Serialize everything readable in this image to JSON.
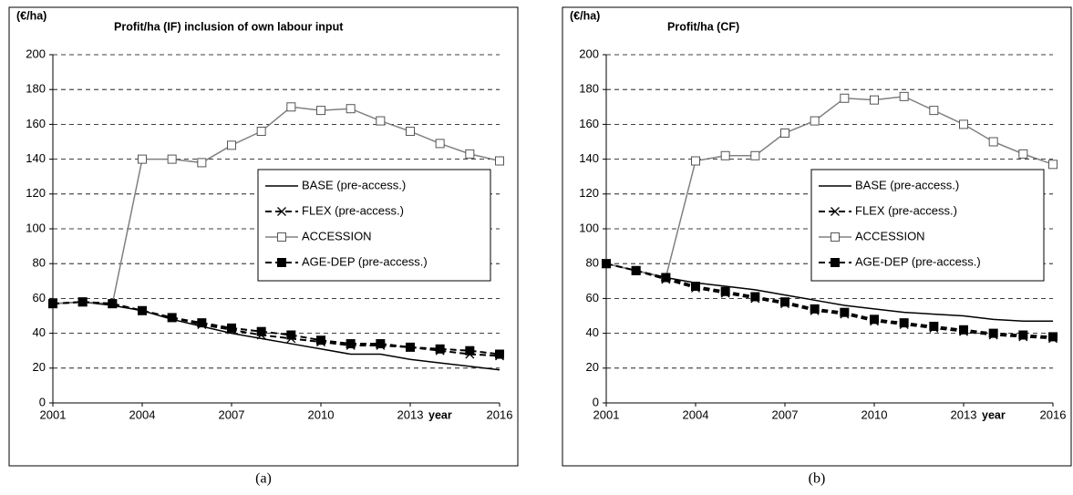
{
  "chart_data": [
    {
      "type": "line",
      "title": "Profit/ha (IF) inclusion of own labour input",
      "y_unit": "(€/ha)",
      "x_label": "year",
      "caption": "(a)",
      "x": [
        2001,
        2002,
        2003,
        2004,
        2005,
        2006,
        2007,
        2008,
        2009,
        2010,
        2011,
        2012,
        2013,
        2014,
        2015,
        2016
      ],
      "xlim": [
        2001,
        2016
      ],
      "xticks": [
        2001,
        2004,
        2007,
        2010,
        2013,
        2016
      ],
      "ylim": [
        0,
        200
      ],
      "yticks": [
        0,
        20,
        40,
        60,
        80,
        100,
        120,
        140,
        160,
        180,
        200
      ],
      "grid": true,
      "legend": "right",
      "series": [
        {
          "name": "BASE (pre-access.)",
          "color": "#000000",
          "dash": "solid",
          "marker": "none",
          "values": [
            57,
            58,
            56,
            53,
            48,
            44,
            40,
            37,
            34,
            31,
            28,
            28,
            25,
            23,
            21,
            19
          ]
        },
        {
          "name": "FLEX (pre-access.)",
          "color": "#000000",
          "dash": "dashed",
          "marker": "x",
          "values": [
            57,
            58,
            57,
            53,
            49,
            45,
            42,
            39,
            37,
            35,
            33,
            33,
            32,
            30,
            28,
            27
          ]
        },
        {
          "name": "ACCESSION",
          "color": "#808080",
          "dash": "solid",
          "marker": "open-square",
          "values": [
            57,
            58,
            57,
            140,
            140,
            138,
            148,
            156,
            170,
            168,
            169,
            162,
            156,
            149,
            143,
            139
          ]
        },
        {
          "name": "AGE-DEP (pre-access.)",
          "color": "#000000",
          "dash": "dashed",
          "marker": "filled-square",
          "values": [
            57,
            58,
            57,
            53,
            49,
            46,
            43,
            41,
            39,
            36,
            34,
            34,
            32,
            31,
            30,
            28
          ]
        }
      ]
    },
    {
      "type": "line",
      "title": "Profit/ha (CF)",
      "y_unit": "(€/ha)",
      "x_label": "year",
      "caption": "(b)",
      "x": [
        2001,
        2002,
        2003,
        2004,
        2005,
        2006,
        2007,
        2008,
        2009,
        2010,
        2011,
        2012,
        2013,
        2014,
        2015,
        2016
      ],
      "xlim": [
        2001,
        2016
      ],
      "xticks": [
        2001,
        2004,
        2007,
        2010,
        2013,
        2016
      ],
      "ylim": [
        0,
        200
      ],
      "yticks": [
        0,
        20,
        40,
        60,
        80,
        100,
        120,
        140,
        160,
        180,
        200
      ],
      "grid": true,
      "legend": "right",
      "series": [
        {
          "name": "BASE (pre-access.)",
          "color": "#000000",
          "dash": "solid",
          "marker": "none",
          "values": [
            80,
            76,
            72,
            69,
            67,
            65,
            62,
            59,
            56,
            54,
            52,
            51,
            50,
            48,
            47,
            47
          ]
        },
        {
          "name": "FLEX (pre-access.)",
          "color": "#000000",
          "dash": "dashed",
          "marker": "x",
          "values": [
            80,
            76,
            71,
            66,
            63,
            60,
            57,
            53,
            51,
            47,
            45,
            43,
            41,
            39,
            38,
            37
          ]
        },
        {
          "name": "ACCESSION",
          "color": "#808080",
          "dash": "solid",
          "marker": "open-square",
          "values": [
            80,
            76,
            72,
            139,
            142,
            142,
            155,
            162,
            175,
            174,
            176,
            168,
            160,
            150,
            143,
            137
          ]
        },
        {
          "name": "AGE-DEP (pre-access.)",
          "color": "#000000",
          "dash": "dashed",
          "marker": "filled-square",
          "values": [
            80,
            76,
            72,
            67,
            64,
            61,
            58,
            54,
            52,
            48,
            46,
            44,
            42,
            40,
            39,
            38
          ]
        }
      ]
    }
  ]
}
